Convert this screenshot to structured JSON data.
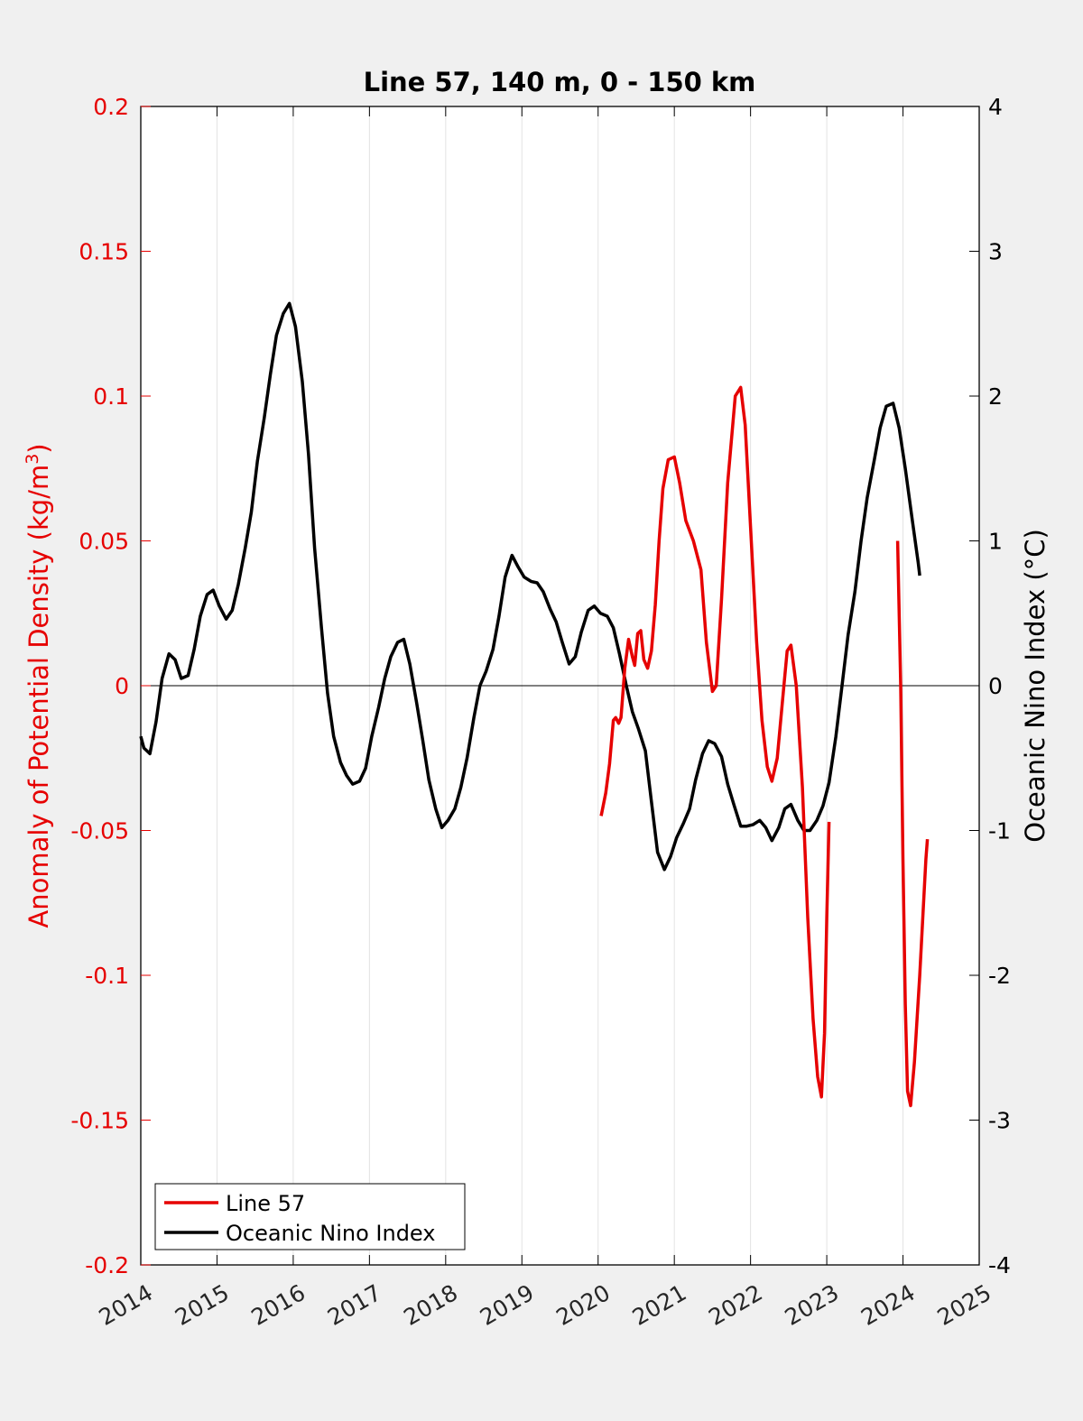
{
  "chart_data": {
    "type": "line",
    "title": "Line 57, 140 m, 0 - 150 km",
    "xlabel": "",
    "ylabel_left_main": "Anomaly of Potential Density (kg/m",
    "ylabel_left_sup": "3",
    "ylabel_left_close": ")",
    "ylabel_right": "Oceanic Nino Index (°C)",
    "xlim": [
      2014,
      2025
    ],
    "ylim_left": [
      -0.2,
      0.2
    ],
    "ylim_right": [
      -4,
      4
    ],
    "x_ticks": [
      2014,
      2015,
      2016,
      2017,
      2018,
      2019,
      2020,
      2021,
      2022,
      2023,
      2024,
      2025
    ],
    "x_tick_labels": [
      "2014",
      "2015",
      "2016",
      "2017",
      "2018",
      "2019",
      "2020",
      "2021",
      "2022",
      "2023",
      "2024",
      "2025"
    ],
    "y_left_ticks": [
      0.2,
      0.15,
      0.1,
      0.05,
      0,
      -0.05,
      -0.1,
      -0.15,
      -0.2
    ],
    "y_left_tick_labels": [
      "0.2",
      "0.15",
      "0.1",
      "0.05",
      "0",
      "-0.05",
      "-0.1",
      "-0.15",
      "-0.2"
    ],
    "y_right_ticks": [
      4,
      3,
      2,
      1,
      0,
      -1,
      -2,
      -3,
      -4
    ],
    "y_right_tick_labels": [
      "4",
      "3",
      "2",
      "1",
      "0",
      "-1",
      "-2",
      "-3",
      "-4"
    ],
    "grid": "vertical",
    "legend_position": "bottom-left",
    "colors": {
      "line57": "#e60000",
      "oni": "#000000",
      "left_axis": "#e60000",
      "right_axis": "#000000"
    },
    "series": [
      {
        "name": "Line 57",
        "axis": "left",
        "segments": [
          [
            [
              2020.04,
              -0.045
            ],
            [
              2020.1,
              -0.037
            ],
            [
              2020.15,
              -0.027
            ],
            [
              2020.2,
              -0.012
            ],
            [
              2020.23,
              -0.011
            ],
            [
              2020.27,
              -0.013
            ],
            [
              2020.3,
              -0.011
            ],
            [
              2020.35,
              0.006
            ],
            [
              2020.4,
              0.016
            ],
            [
              2020.45,
              0.01
            ],
            [
              2020.48,
              0.007
            ],
            [
              2020.52,
              0.018
            ],
            [
              2020.56,
              0.019
            ],
            [
              2020.6,
              0.009
            ],
            [
              2020.65,
              0.006
            ],
            [
              2020.7,
              0.012
            ],
            [
              2020.75,
              0.028
            ],
            [
              2020.8,
              0.05
            ],
            [
              2020.85,
              0.068
            ],
            [
              2020.92,
              0.078
            ],
            [
              2021.0,
              0.079
            ],
            [
              2021.07,
              0.07
            ],
            [
              2021.15,
              0.057
            ],
            [
              2021.25,
              0.05
            ],
            [
              2021.35,
              0.04
            ],
            [
              2021.42,
              0.015
            ],
            [
              2021.5,
              -0.002
            ],
            [
              2021.55,
              0.0
            ],
            [
              2021.62,
              0.03
            ],
            [
              2021.7,
              0.07
            ],
            [
              2021.8,
              0.1
            ],
            [
              2021.87,
              0.103
            ],
            [
              2021.93,
              0.09
            ],
            [
              2022.0,
              0.055
            ],
            [
              2022.08,
              0.015
            ],
            [
              2022.15,
              -0.012
            ],
            [
              2022.22,
              -0.028
            ],
            [
              2022.28,
              -0.033
            ],
            [
              2022.35,
              -0.025
            ],
            [
              2022.42,
              -0.005
            ],
            [
              2022.48,
              0.012
            ],
            [
              2022.53,
              0.014
            ],
            [
              2022.6,
              0.0
            ],
            [
              2022.68,
              -0.035
            ],
            [
              2022.75,
              -0.08
            ],
            [
              2022.82,
              -0.115
            ],
            [
              2022.88,
              -0.135
            ],
            [
              2022.93,
              -0.142
            ],
            [
              2022.97,
              -0.12
            ],
            [
              2023.0,
              -0.08
            ],
            [
              2023.03,
              -0.047
            ]
          ],
          [
            [
              2023.93,
              0.05
            ],
            [
              2023.97,
              0.0
            ],
            [
              2024.0,
              -0.06
            ],
            [
              2024.03,
              -0.11
            ],
            [
              2024.06,
              -0.14
            ],
            [
              2024.1,
              -0.145
            ],
            [
              2024.15,
              -0.13
            ],
            [
              2024.22,
              -0.1
            ],
            [
              2024.3,
              -0.06
            ],
            [
              2024.32,
              -0.053
            ]
          ]
        ]
      },
      {
        "name": "Oceanic Nino Index",
        "axis": "right",
        "segments": [
          [
            [
              2014.0,
              -0.35
            ],
            [
              2014.04,
              -0.43
            ],
            [
              2014.12,
              -0.47
            ],
            [
              2014.2,
              -0.25
            ],
            [
              2014.28,
              0.05
            ],
            [
              2014.37,
              0.22
            ],
            [
              2014.45,
              0.18
            ],
            [
              2014.53,
              0.05
            ],
            [
              2014.62,
              0.07
            ],
            [
              2014.7,
              0.25
            ],
            [
              2014.78,
              0.48
            ],
            [
              2014.87,
              0.63
            ],
            [
              2014.95,
              0.66
            ],
            [
              2015.03,
              0.55
            ],
            [
              2015.12,
              0.46
            ],
            [
              2015.2,
              0.52
            ],
            [
              2015.28,
              0.7
            ],
            [
              2015.37,
              0.95
            ],
            [
              2015.45,
              1.2
            ],
            [
              2015.53,
              1.55
            ],
            [
              2015.62,
              1.85
            ],
            [
              2015.7,
              2.15
            ],
            [
              2015.78,
              2.42
            ],
            [
              2015.87,
              2.57
            ],
            [
              2015.95,
              2.64
            ],
            [
              2016.03,
              2.48
            ],
            [
              2016.12,
              2.1
            ],
            [
              2016.2,
              1.6
            ],
            [
              2016.28,
              0.95
            ],
            [
              2016.37,
              0.4
            ],
            [
              2016.45,
              -0.05
            ],
            [
              2016.53,
              -0.35
            ],
            [
              2016.62,
              -0.53
            ],
            [
              2016.7,
              -0.62
            ],
            [
              2016.78,
              -0.68
            ],
            [
              2016.87,
              -0.66
            ],
            [
              2016.95,
              -0.57
            ],
            [
              2017.03,
              -0.35
            ],
            [
              2017.12,
              -0.15
            ],
            [
              2017.2,
              0.05
            ],
            [
              2017.28,
              0.2
            ],
            [
              2017.37,
              0.3
            ],
            [
              2017.45,
              0.32
            ],
            [
              2017.53,
              0.15
            ],
            [
              2017.62,
              -0.12
            ],
            [
              2017.7,
              -0.38
            ],
            [
              2017.78,
              -0.65
            ],
            [
              2017.87,
              -0.85
            ],
            [
              2017.95,
              -0.98
            ],
            [
              2018.03,
              -0.93
            ],
            [
              2018.12,
              -0.85
            ],
            [
              2018.2,
              -0.7
            ],
            [
              2018.28,
              -0.5
            ],
            [
              2018.37,
              -0.22
            ],
            [
              2018.45,
              0.0
            ],
            [
              2018.53,
              0.1
            ],
            [
              2018.62,
              0.25
            ],
            [
              2018.7,
              0.48
            ],
            [
              2018.78,
              0.75
            ],
            [
              2018.87,
              0.9
            ],
            [
              2018.95,
              0.82
            ],
            [
              2019.03,
              0.75
            ],
            [
              2019.12,
              0.72
            ],
            [
              2019.2,
              0.71
            ],
            [
              2019.28,
              0.65
            ],
            [
              2019.37,
              0.53
            ],
            [
              2019.45,
              0.44
            ],
            [
              2019.53,
              0.3
            ],
            [
              2019.62,
              0.15
            ],
            [
              2019.7,
              0.2
            ],
            [
              2019.78,
              0.37
            ],
            [
              2019.87,
              0.52
            ],
            [
              2019.95,
              0.55
            ],
            [
              2020.03,
              0.5
            ],
            [
              2020.12,
              0.48
            ],
            [
              2020.2,
              0.4
            ],
            [
              2020.28,
              0.22
            ],
            [
              2020.37,
              0.0
            ],
            [
              2020.45,
              -0.18
            ],
            [
              2020.53,
              -0.3
            ],
            [
              2020.62,
              -0.45
            ],
            [
              2020.7,
              -0.8
            ],
            [
              2020.78,
              -1.15
            ],
            [
              2020.87,
              -1.27
            ],
            [
              2020.95,
              -1.18
            ],
            [
              2021.03,
              -1.05
            ],
            [
              2021.12,
              -0.95
            ],
            [
              2021.2,
              -0.85
            ],
            [
              2021.28,
              -0.65
            ],
            [
              2021.37,
              -0.47
            ],
            [
              2021.45,
              -0.38
            ],
            [
              2021.53,
              -0.4
            ],
            [
              2021.62,
              -0.49
            ],
            [
              2021.7,
              -0.68
            ],
            [
              2021.78,
              -0.82
            ],
            [
              2021.87,
              -0.97
            ],
            [
              2021.95,
              -0.97
            ],
            [
              2022.03,
              -0.96
            ],
            [
              2022.12,
              -0.93
            ],
            [
              2022.2,
              -0.98
            ],
            [
              2022.28,
              -1.07
            ],
            [
              2022.37,
              -0.98
            ],
            [
              2022.45,
              -0.85
            ],
            [
              2022.53,
              -0.82
            ],
            [
              2022.62,
              -0.93
            ],
            [
              2022.7,
              -1.0
            ],
            [
              2022.78,
              -1.0
            ],
            [
              2022.87,
              -0.93
            ],
            [
              2022.95,
              -0.83
            ],
            [
              2023.03,
              -0.67
            ],
            [
              2023.12,
              -0.35
            ],
            [
              2023.2,
              0.0
            ],
            [
              2023.28,
              0.35
            ],
            [
              2023.37,
              0.65
            ],
            [
              2023.45,
              1.0
            ],
            [
              2023.53,
              1.3
            ],
            [
              2023.62,
              1.55
            ],
            [
              2023.7,
              1.78
            ],
            [
              2023.78,
              1.93
            ],
            [
              2023.87,
              1.95
            ],
            [
              2023.95,
              1.78
            ],
            [
              2024.03,
              1.5
            ],
            [
              2024.12,
              1.15
            ],
            [
              2024.2,
              0.85
            ],
            [
              2024.22,
              0.76
            ]
          ]
        ]
      }
    ]
  }
}
